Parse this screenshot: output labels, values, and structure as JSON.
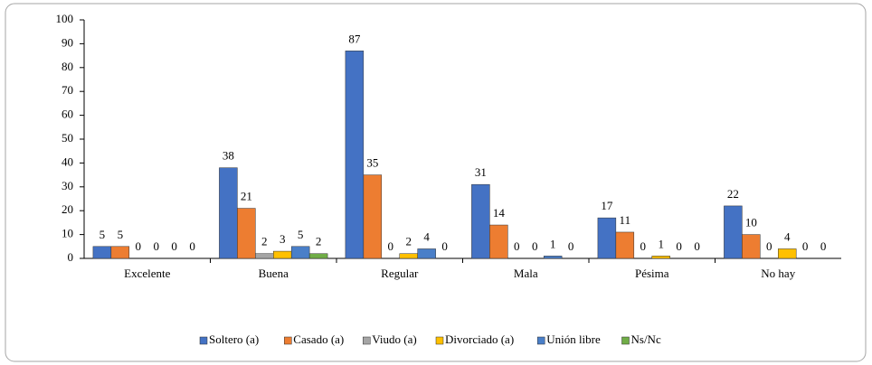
{
  "chart_data": {
    "type": "bar",
    "categories": [
      "Excelente",
      "Buena",
      "Regular",
      "Mala",
      "Pésima",
      "No hay"
    ],
    "series": [
      {
        "name": "Soltero (a)",
        "color": "#4472c4",
        "values": [
          5,
          38,
          87,
          31,
          17,
          22
        ]
      },
      {
        "name": "Casado (a)",
        "color": "#ed7d31",
        "values": [
          5,
          21,
          35,
          14,
          11,
          10
        ]
      },
      {
        "name": "Viudo (a)",
        "color": "#a5a5a5",
        "values": [
          0,
          2,
          0,
          0,
          0,
          0
        ]
      },
      {
        "name": "Divorciado (a)",
        "color": "#ffc000",
        "values": [
          0,
          3,
          2,
          0,
          1,
          4
        ]
      },
      {
        "name": "Unión libre",
        "color": "#4a7fc8",
        "values": [
          0,
          5,
          4,
          1,
          0,
          0
        ]
      },
      {
        "name": "Ns/Nc",
        "color": "#70ad47",
        "values": [
          0,
          2,
          0,
          0,
          0,
          0
        ]
      }
    ],
    "ylim": [
      0,
      100
    ],
    "yticks": [
      0,
      10,
      20,
      30,
      40,
      50,
      60,
      70,
      80,
      90,
      100
    ],
    "grid": false,
    "legend": "bottom"
  }
}
